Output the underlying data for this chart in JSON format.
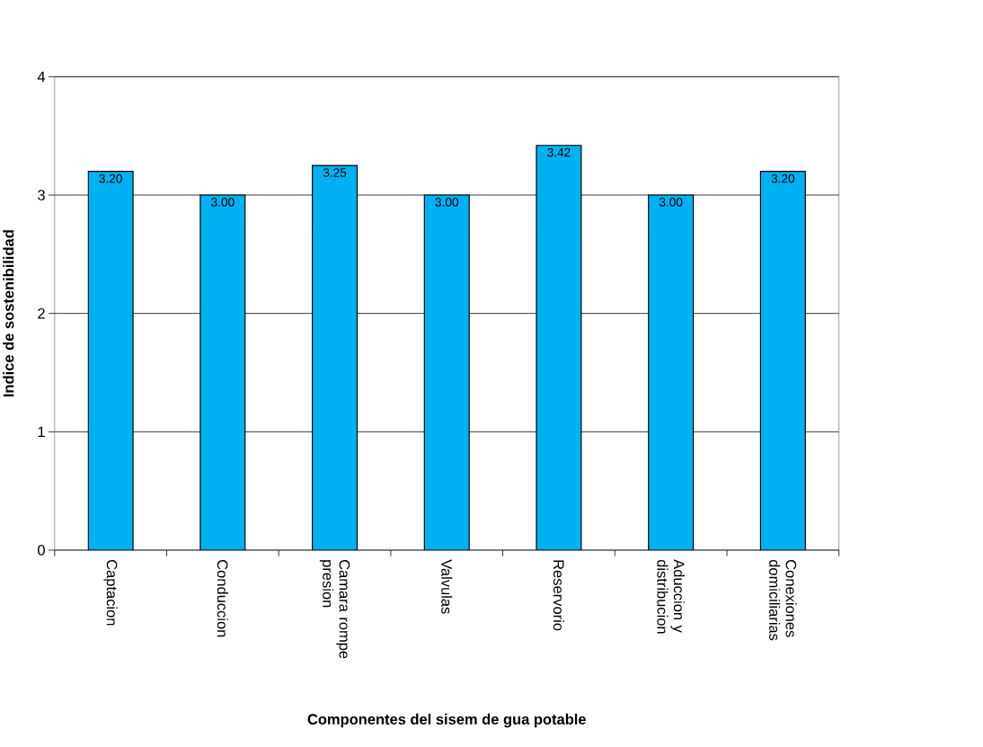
{
  "chart_data": {
    "type": "bar",
    "xlabel": "Componentes del sisem de gua potable",
    "ylabel": "Indice de sostenibilidad",
    "categories": [
      "Captacion",
      "Conduccion",
      "Camara rompe presion",
      "Valvulas",
      "Reservorio",
      "Aduccion y distribucion",
      "Conexiones domiciliarias"
    ],
    "values": [
      3.2,
      3.0,
      3.25,
      3.0,
      3.42,
      3.0,
      3.2
    ],
    "value_labels": [
      "3.20",
      "3.00",
      "3.25",
      "3.00",
      "3.42",
      "3.00",
      "3.20"
    ],
    "color": "#00b0f0",
    "ylim": [
      0,
      4
    ],
    "yticks": [
      0,
      1,
      2,
      3,
      4
    ],
    "grid": "y"
  }
}
